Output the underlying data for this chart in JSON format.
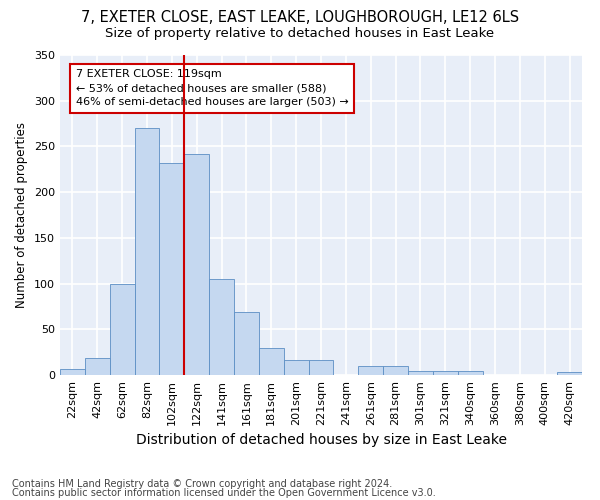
{
  "title1": "7, EXETER CLOSE, EAST LEAKE, LOUGHBOROUGH, LE12 6LS",
  "title2": "Size of property relative to detached houses in East Leake",
  "xlabel": "Distribution of detached houses by size in East Leake",
  "ylabel": "Number of detached properties",
  "bar_labels": [
    "22sqm",
    "42sqm",
    "62sqm",
    "82sqm",
    "102sqm",
    "122sqm",
    "141sqm",
    "161sqm",
    "181sqm",
    "201sqm",
    "221sqm",
    "241sqm",
    "261sqm",
    "281sqm",
    "301sqm",
    "321sqm",
    "340sqm",
    "360sqm",
    "380sqm",
    "400sqm",
    "420sqm"
  ],
  "bar_values": [
    7,
    19,
    99,
    270,
    232,
    242,
    105,
    69,
    30,
    16,
    16,
    0,
    10,
    10,
    4,
    4,
    4,
    0,
    0,
    0,
    3
  ],
  "bar_color": "#c5d8f0",
  "bar_edge_color": "#5b8ec4",
  "annotation_text": "7 EXETER CLOSE: 119sqm\n← 53% of detached houses are smaller (588)\n46% of semi-detached houses are larger (503) →",
  "annotation_box_color": "#ffffff",
  "annotation_box_edge_color": "#cc0000",
  "subject_line_color": "#cc0000",
  "subject_line_bar_index": 5,
  "ylim": [
    0,
    350
  ],
  "yticks": [
    0,
    50,
    100,
    150,
    200,
    250,
    300,
    350
  ],
  "bg_color": "#e8eef8",
  "grid_color": "#ffffff",
  "footer1": "Contains HM Land Registry data © Crown copyright and database right 2024.",
  "footer2": "Contains public sector information licensed under the Open Government Licence v3.0.",
  "title_fontsize": 10.5,
  "subtitle_fontsize": 9.5,
  "xlabel_fontsize": 10,
  "ylabel_fontsize": 8.5,
  "tick_fontsize": 8,
  "footer_fontsize": 7,
  "annot_fontsize": 8
}
